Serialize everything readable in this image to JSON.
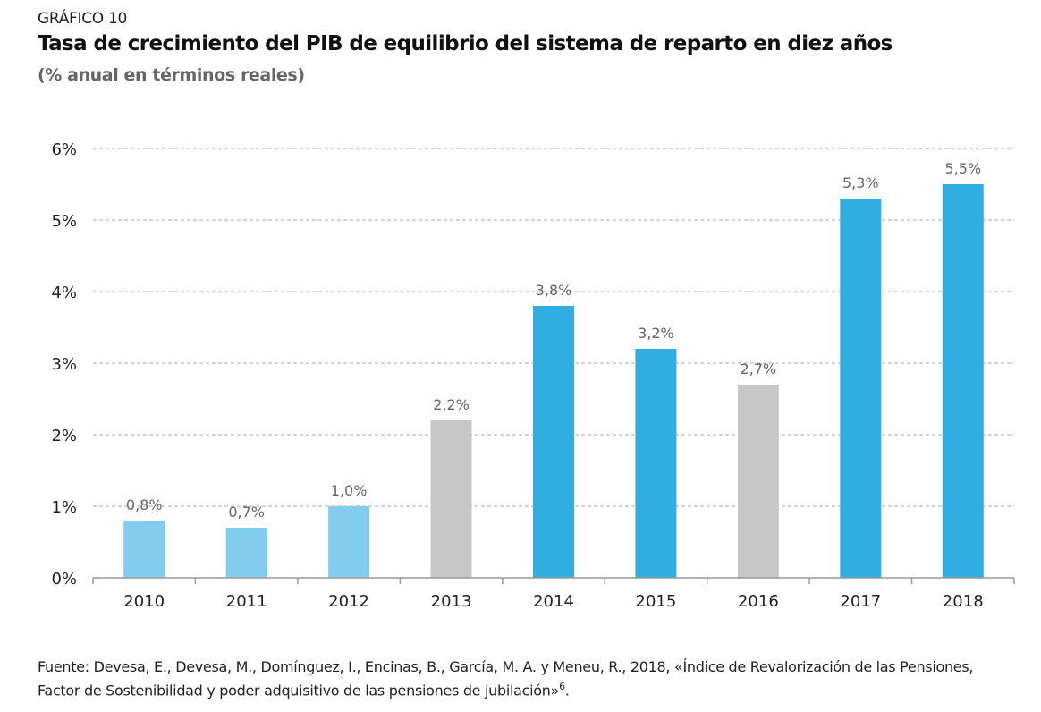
{
  "header": {
    "kicker": "GRÁFICO 10",
    "title": "Tasa de crecimiento del PIB de equilibrio del sistema de reparto en diez años",
    "subtitle": "(% anual en términos reales)"
  },
  "source": {
    "text": "Fuente: Devesa, E., Devesa, M., Domínguez, I., Encinas, B., García, M. A. y Meneu, R., 2018, «Índice de Revalorización de las Pensiones, Factor de Sostenibilidad y poder adquisitivo de las pensiones de jubilación»",
    "footnote": "6",
    "end": "."
  },
  "chart_data": {
    "type": "bar",
    "categories": [
      "2010",
      "2011",
      "2012",
      "2013",
      "2014",
      "2015",
      "2016",
      "2017",
      "2018"
    ],
    "values": [
      0.8,
      0.7,
      1.0,
      2.2,
      3.8,
      3.2,
      2.7,
      5.3,
      5.5
    ],
    "data_labels": [
      "0,8%",
      "0,7%",
      "1,0%",
      "2,2%",
      "3,8%",
      "3,2%",
      "2,7%",
      "5,3%",
      "5,5%"
    ],
    "bar_colors": [
      "#82cdee",
      "#82cdee",
      "#82cdee",
      "#c8c7c8",
      "#30ade1",
      "#30ade1",
      "#c8c7c8",
      "#30ade1",
      "#30ade1"
    ],
    "ylim": [
      0,
      6
    ],
    "yticks": [
      0,
      1,
      2,
      3,
      4,
      5,
      6
    ],
    "ytick_labels": [
      "0%",
      "1%",
      "2%",
      "3%",
      "4%",
      "5%",
      "6%"
    ],
    "grid": "horizontal dashed",
    "xlabel": "",
    "ylabel": ""
  }
}
